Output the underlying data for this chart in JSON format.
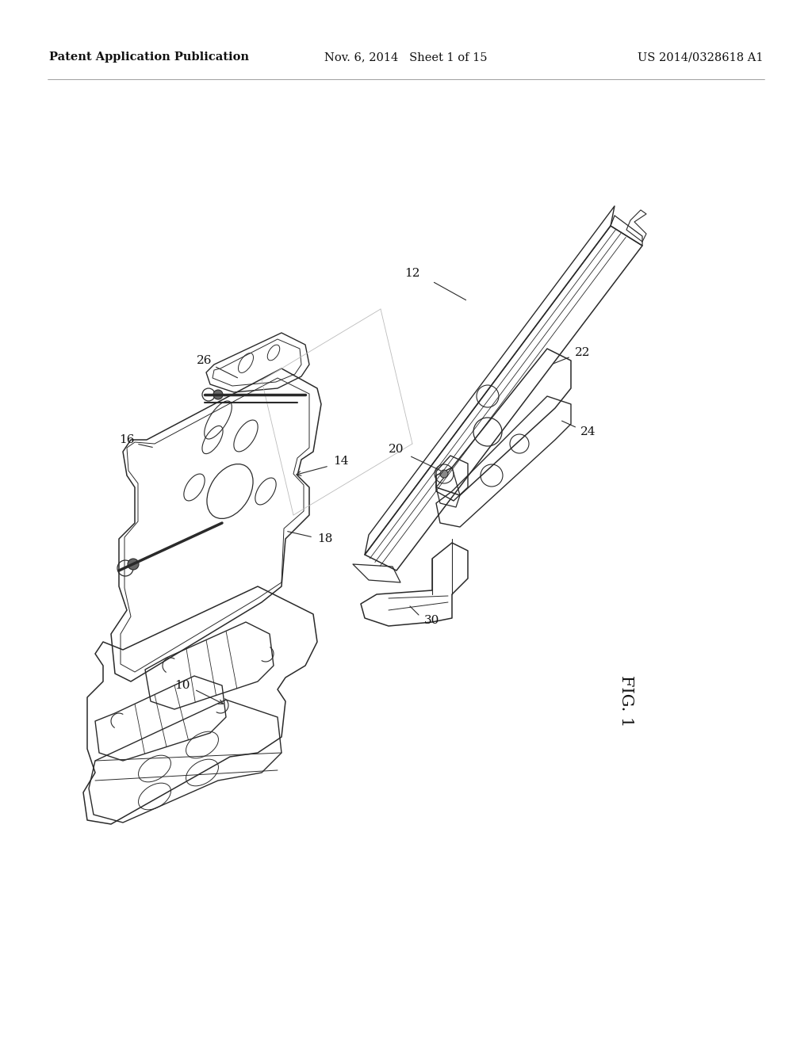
{
  "background_color": "#ffffff",
  "header_left": "Patent Application Publication",
  "header_center": "Nov. 6, 2014   Sheet 1 of 15",
  "header_right": "US 2014/0328618 A1",
  "fig_label": "FIG. 1",
  "header_font_size": 10.5,
  "fig_label_font_size": 15,
  "line_color": "#2a2a2a",
  "light_line_color": "#999999"
}
